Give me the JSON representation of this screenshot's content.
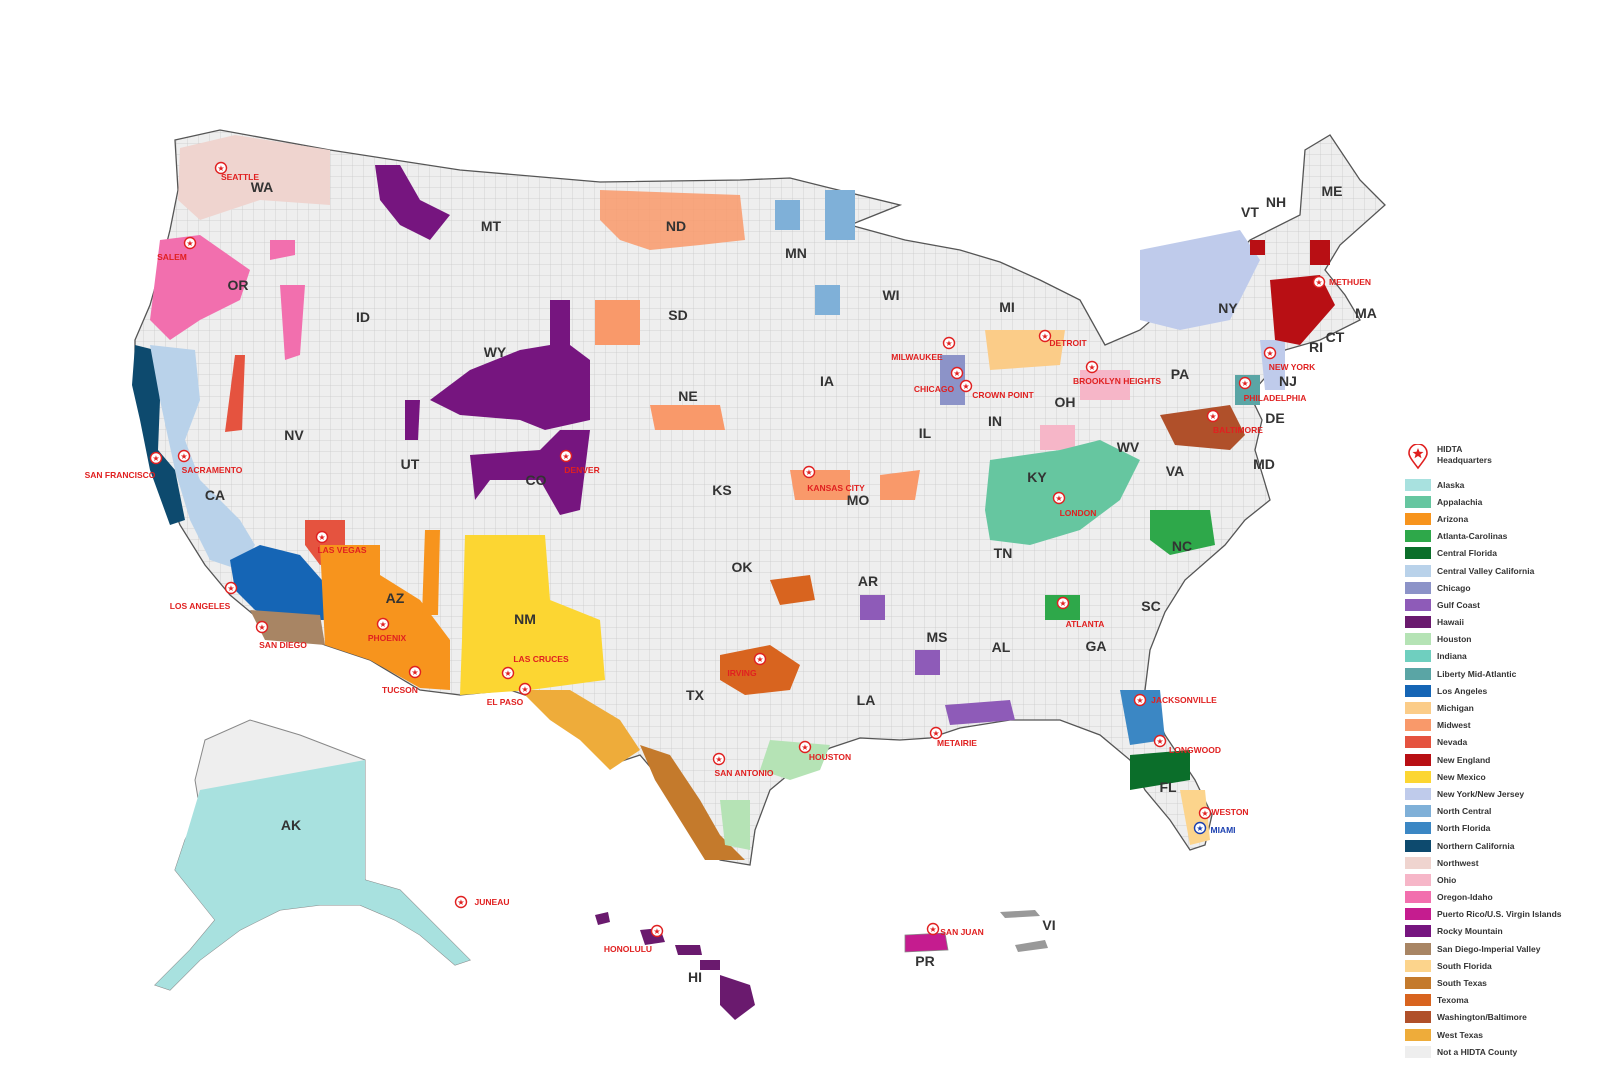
{
  "state_labels": [
    "WA",
    "OR",
    "CA",
    "NV",
    "ID",
    "MT",
    "WY",
    "UT",
    "AZ",
    "CO",
    "NM",
    "ND",
    "SD",
    "NE",
    "KS",
    "OK",
    "TX",
    "MN",
    "IA",
    "MO",
    "AR",
    "LA",
    "WI",
    "IL",
    "MI",
    "IN",
    "OH",
    "KY",
    "TN",
    "MS",
    "AL",
    "GA",
    "FL",
    "SC",
    "NC",
    "VA",
    "WV",
    "MD",
    "DE",
    "PA",
    "NJ",
    "NY",
    "CT",
    "RI",
    "MA",
    "VT",
    "NH",
    "ME",
    "AK",
    "HI",
    "PR",
    "VI"
  ],
  "cities": [
    "SEATTLE",
    "SALEM",
    "SAN FRANCISCO",
    "SACRAMENTO",
    "LAS VEGAS",
    "LOS ANGELES",
    "SAN DIEGO",
    "PHOENIX",
    "TUCSON",
    "LAS CRUCES",
    "EL PASO",
    "DENVER",
    "KANSAS CITY",
    "IRVING",
    "SAN ANTONIO",
    "HOUSTON",
    "METAIRIE",
    "CHICAGO",
    "CROWN POINT",
    "MILWAUKEE",
    "DETROIT",
    "BROOKLYN HEIGHTS",
    "LONDON",
    "ATLANTA",
    "JACKSONVILLE",
    "LONGWOOD",
    "WESTON",
    "MIAMI",
    "BALTIMORE",
    "PHILADELPHIA",
    "NEW YORK",
    "METHUEN",
    "JUNEAU",
    "HONOLULU",
    "SAN JUAN"
  ],
  "legend": {
    "hq_label": "HIDTA Headquarters",
    "items": [
      {
        "label": "Alaska",
        "color": "#a8e1df"
      },
      {
        "label": "Appalachia",
        "color": "#66c6a0"
      },
      {
        "label": "Arizona",
        "color": "#f7941d"
      },
      {
        "label": "Atlanta-Carolinas",
        "color": "#2ea84a"
      },
      {
        "label": "Central Florida",
        "color": "#0b6e2a"
      },
      {
        "label": "Central Valley California",
        "color": "#b9d2ea"
      },
      {
        "label": "Chicago",
        "color": "#8c93c8"
      },
      {
        "label": "Gulf Coast",
        "color": "#8e5bb8"
      },
      {
        "label": "Hawaii",
        "color": "#6a1a6e"
      },
      {
        "label": "Houston",
        "color": "#b5e3b5"
      },
      {
        "label": "Indiana",
        "color": "#6fcfbf"
      },
      {
        "label": "Liberty Mid-Atlantic",
        "color": "#5aa5a5"
      },
      {
        "label": "Los Angeles",
        "color": "#1565b5"
      },
      {
        "label": "Michigan",
        "color": "#fbcc88"
      },
      {
        "label": "Midwest",
        "color": "#f9996a"
      },
      {
        "label": "Nevada",
        "color": "#e5533f"
      },
      {
        "label": "New England",
        "color": "#b80f14"
      },
      {
        "label": "New Mexico",
        "color": "#fcd632"
      },
      {
        "label": "New York/New Jersey",
        "color": "#bfcbeb"
      },
      {
        "label": "North Central",
        "color": "#7fb0d8"
      },
      {
        "label": "North Florida",
        "color": "#3b87c4"
      },
      {
        "label": "Northern California",
        "color": "#0d4a6e"
      },
      {
        "label": "Northwest",
        "color": "#efd4cf"
      },
      {
        "label": "Ohio",
        "color": "#f6b6c8"
      },
      {
        "label": "Oregon-Idaho",
        "color": "#f26fae"
      },
      {
        "label": "Puerto Rico/U.S. Virgin Islands",
        "color": "#c51c8f"
      },
      {
        "label": "Rocky Mountain",
        "color": "#76157f"
      },
      {
        "label": "San Diego-Imperial Valley",
        "color": "#a88564"
      },
      {
        "label": "South Florida",
        "color": "#fcd48c"
      },
      {
        "label": "South Texas",
        "color": "#c47a2c"
      },
      {
        "label": "Texoma",
        "color": "#d8641f"
      },
      {
        "label": "Washington/Baltimore",
        "color": "#b0502a"
      },
      {
        "label": "West Texas",
        "color": "#eeac3a"
      },
      {
        "label": "Not a HIDTA County",
        "color": "#eeeeee"
      }
    ]
  },
  "colors": {
    "land": "#eeeeee",
    "county_border": "#c8c8c8",
    "state_border": "#555555",
    "hq_marker": "#e02020",
    "hq_marker_miami": "#1a3fb0"
  }
}
